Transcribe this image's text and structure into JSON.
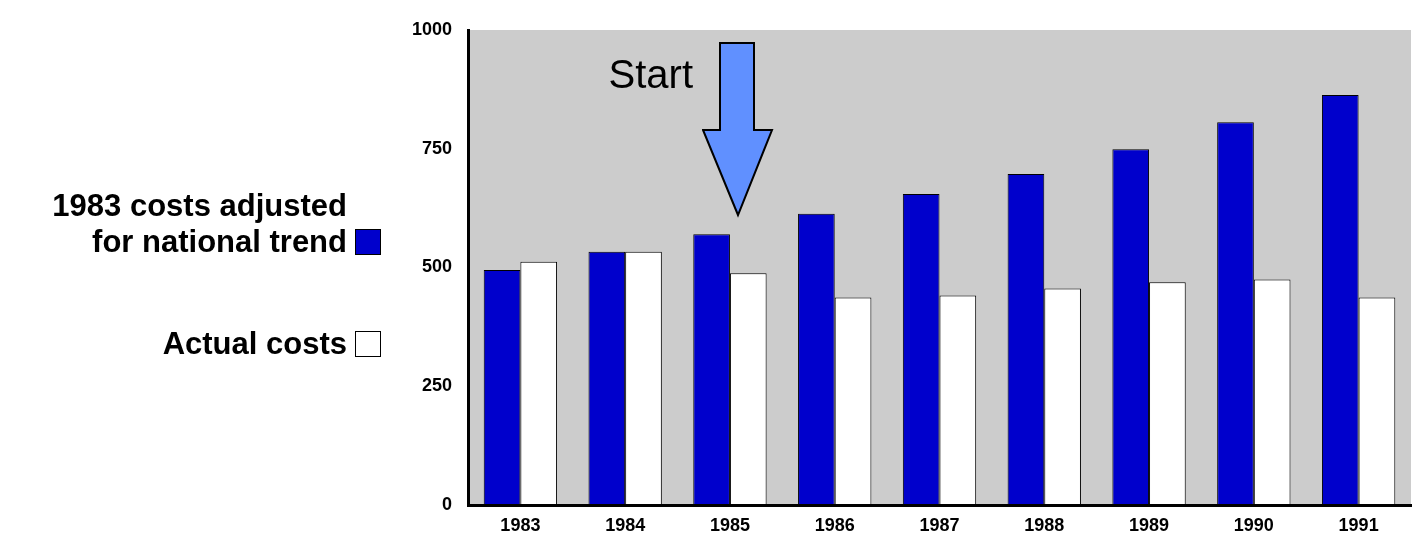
{
  "chart_data": {
    "type": "bar",
    "categories": [
      "1983",
      "1984",
      "1985",
      "1986",
      "1987",
      "1988",
      "1989",
      "1990",
      "1991"
    ],
    "series": [
      {
        "name": "1983 costs adjusted\nfor national trend",
        "color": "#0000cc",
        "values": [
          495,
          533,
          570,
          613,
          655,
          697,
          749,
          806,
          863
        ]
      },
      {
        "name": "Actual costs",
        "color": "#ffffff",
        "values": [
          512,
          533,
          488,
          437,
          441,
          456,
          469,
          475,
          437
        ]
      }
    ],
    "ylim": [
      0,
      1000
    ],
    "yticks": [
      0,
      250,
      500,
      750,
      1000
    ],
    "legend": "left",
    "annotations": [
      "Start"
    ]
  }
}
